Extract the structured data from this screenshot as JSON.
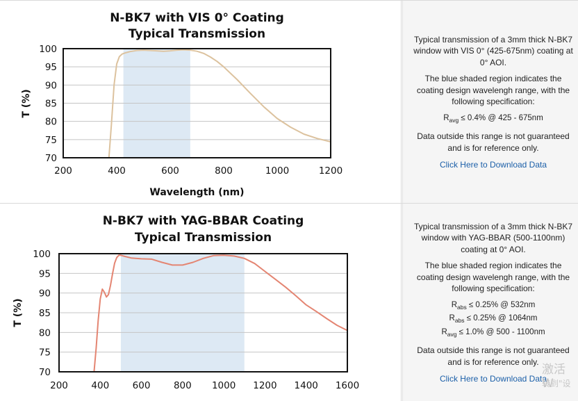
{
  "chart_data": [
    {
      "type": "line",
      "title": "N-BK7 with VIS 0° Coating",
      "subtitle": "Typical Transmission",
      "xlabel": "Wavelength (nm)",
      "ylabel": "T (%)",
      "xlim": [
        200,
        1200
      ],
      "ylim": [
        70,
        100
      ],
      "xticks": [
        200,
        400,
        600,
        800,
        1000,
        1200
      ],
      "yticks": [
        70,
        75,
        80,
        85,
        90,
        95,
        100
      ],
      "grid": "horizontal",
      "shaded_region": [
        425,
        675
      ],
      "shade_color": "#dde9f4",
      "line_color": "#dcc29e",
      "series": [
        {
          "name": "Transmission",
          "x": [
            370,
            380,
            390,
            400,
            410,
            420,
            430,
            450,
            475,
            500,
            525,
            550,
            575,
            600,
            625,
            650,
            675,
            700,
            725,
            750,
            775,
            800,
            850,
            900,
            950,
            1000,
            1050,
            1100,
            1150,
            1200
          ],
          "y": [
            69,
            79,
            90,
            95.8,
            97.8,
            98.5,
            98.8,
            99.2,
            99.5,
            99.6,
            99.5,
            99.4,
            99.3,
            99.4,
            99.6,
            99.7,
            99.6,
            99.3,
            98.7,
            97.7,
            96.5,
            95.0,
            91.5,
            87.7,
            84.0,
            80.8,
            78.4,
            76.5,
            75.3,
            74.4
          ]
        }
      ]
    },
    {
      "type": "line",
      "title": "N-BK7 with YAG-BBAR Coating",
      "subtitle": "Typical Transmission",
      "xlabel": "",
      "ylabel": "T (%)",
      "xlim": [
        200,
        1600
      ],
      "ylim": [
        70,
        100
      ],
      "xticks": [
        200,
        400,
        600,
        800,
        1000,
        1200,
        1400,
        1600
      ],
      "yticks": [
        70,
        75,
        80,
        85,
        90,
        95,
        100
      ],
      "grid": "horizontal",
      "shaded_region": [
        500,
        1100
      ],
      "shade_color": "#dde9f4",
      "line_color": "#e48572",
      "series": [
        {
          "name": "Transmission",
          "x": [
            370,
            380,
            390,
            400,
            410,
            420,
            430,
            440,
            450,
            460,
            470,
            480,
            490,
            500,
            520,
            550,
            600,
            650,
            700,
            750,
            800,
            850,
            900,
            950,
            1000,
            1050,
            1100,
            1150,
            1200,
            1250,
            1300,
            1350,
            1400,
            1450,
            1500,
            1550,
            1600
          ],
          "y": [
            70,
            76,
            83,
            88.5,
            91,
            90.2,
            89,
            89.6,
            92,
            95,
            97.6,
            99,
            99.6,
            99.6,
            99.3,
            98.9,
            98.7,
            98.6,
            97.8,
            97.1,
            97.1,
            97.8,
            98.8,
            99.5,
            99.6,
            99.4,
            98.8,
            97.5,
            95.5,
            93.5,
            91.5,
            89.3,
            87.0,
            85.3,
            83.5,
            81.8,
            80.5
          ]
        }
      ]
    }
  ],
  "panels": [
    {
      "desc1": "Typical transmission of a 3mm thick N-BK7 window with VIS 0° (425-675nm) coating at 0° AOI.",
      "desc2": "The blue shaded region indicates the coating design wavelengh range, with the following specification:",
      "specs": [
        {
          "sym": "R",
          "sub": "avg",
          "text": " ≤ 0.4% @ 425 - 675nm"
        }
      ],
      "desc3": "Data outside this range is not guaranteed and is for reference only.",
      "link": "Click Here to Download Data"
    },
    {
      "desc1": "Typical transmission of a 3mm thick N-BK7 window with YAG-BBAR (500-1100nm) coating at 0° AOI.",
      "desc2": "The blue shaded region indicates the coating design wavelengh range, with the following specification:",
      "specs": [
        {
          "sym": "R",
          "sub": "abs",
          "text": " ≤ 0.25% @ 532nm"
        },
        {
          "sym": "R",
          "sub": "abs",
          "text": " ≤ 0.25% @ 1064nm"
        },
        {
          "sym": "R",
          "sub": "avg",
          "text": " ≤ 1.0% @ 500 - 1100nm"
        }
      ],
      "desc3": "Data outside this range is not guaranteed and is for reference only.",
      "link": "Click Here to Download Data"
    }
  ],
  "watermark": {
    "line1": "激活 W",
    "line2": "转到\"设"
  }
}
